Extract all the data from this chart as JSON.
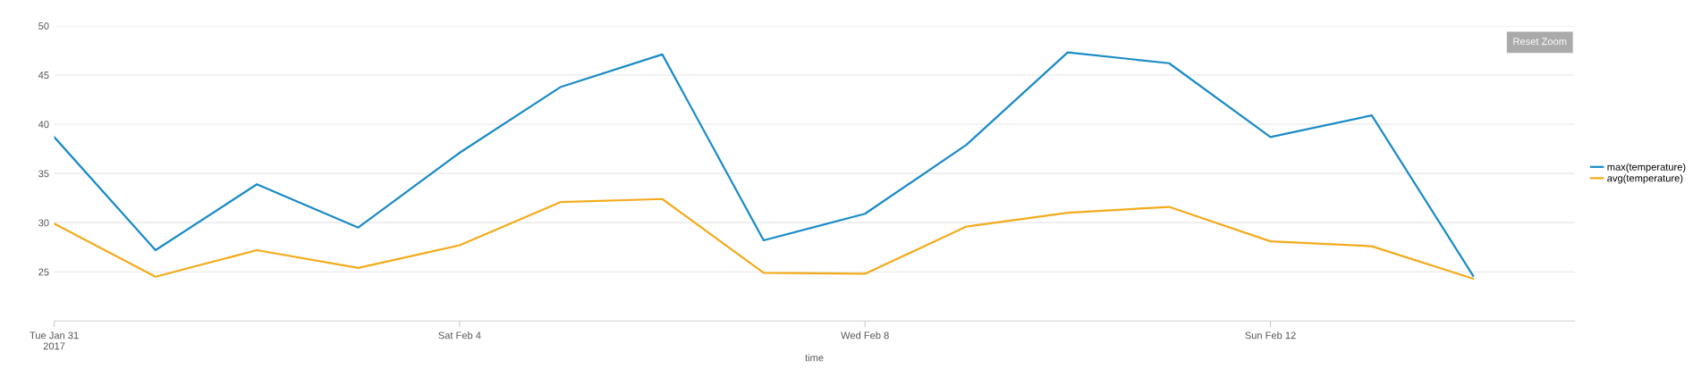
{
  "chart_data": {
    "type": "line",
    "xlabel": "time",
    "x": [
      "2017-01-31",
      "2017-02-01",
      "2017-02-02",
      "2017-02-03",
      "2017-02-04",
      "2017-02-05",
      "2017-02-06",
      "2017-02-07",
      "2017-02-08",
      "2017-02-09",
      "2017-02-10",
      "2017-02-11",
      "2017-02-12",
      "2017-02-13",
      "2017-02-14"
    ],
    "series": [
      {
        "name": "max(temperature)",
        "color": "#1a8bc6",
        "values": [
          38.7,
          27.2,
          33.9,
          29.5,
          37.1,
          43.8,
          47.1,
          28.2,
          30.9,
          37.9,
          47.3,
          46.2,
          38.7,
          40.9,
          24.6
        ]
      },
      {
        "name": "avg(temperature)",
        "color": "#f2ab1c",
        "values": [
          29.9,
          24.5,
          27.2,
          25.4,
          27.7,
          32.1,
          32.4,
          24.9,
          24.8,
          29.6,
          31.0,
          31.6,
          28.1,
          27.6,
          24.3
        ]
      }
    ],
    "xlim": [
      "2017-01-31",
      "2017-02-15"
    ],
    "xticks": [
      {
        "value": "2017-01-31",
        "label": "Tue Jan 31\n2017"
      },
      {
        "value": "2017-02-04",
        "label": "Sat Feb 4"
      },
      {
        "value": "2017-02-08",
        "label": "Wed Feb 8"
      },
      {
        "value": "2017-02-12",
        "label": "Sun Feb 12"
      }
    ],
    "ylim": [
      20,
      50
    ],
    "yticks": [
      25,
      30,
      35,
      40,
      45,
      50
    ],
    "grid": "y",
    "legend": "right",
    "marker": "none",
    "line_style": "solid",
    "annotations": [
      "Reset Zoom"
    ]
  }
}
